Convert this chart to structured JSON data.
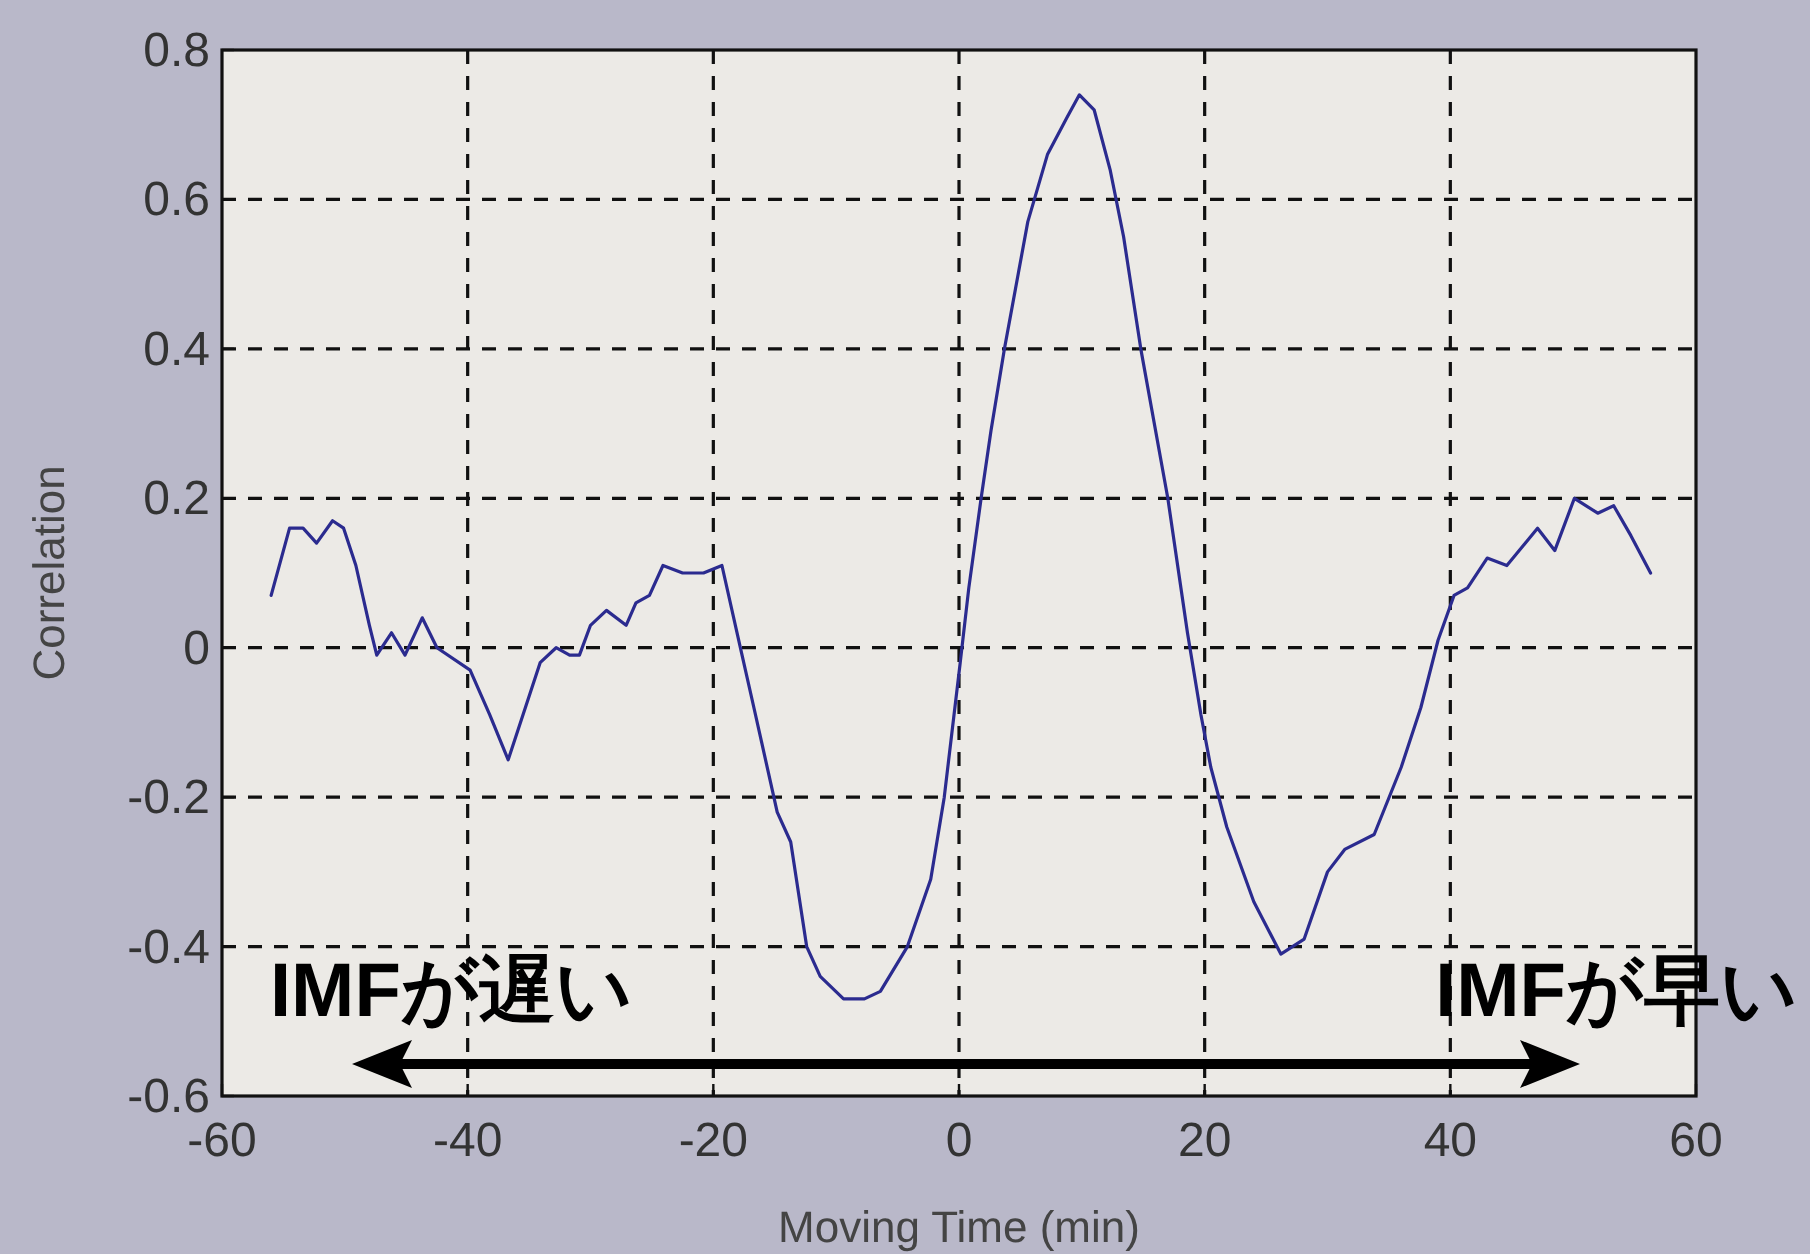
{
  "chart_data": {
    "type": "line",
    "xlabel": "Moving Time (min)",
    "ylabel": "Correlation",
    "xlim": [
      -60,
      60
    ],
    "ylim": [
      -0.6,
      0.8
    ],
    "xticks": [
      -60,
      -40,
      -20,
      0,
      20,
      40,
      60
    ],
    "yticks": [
      -0.6,
      -0.4,
      -0.2,
      0,
      0.2,
      0.4,
      0.6,
      0.8
    ],
    "grid": true,
    "annotations": [
      "IMFが遅い",
      "IMFが早い"
    ],
    "series": [
      {
        "color": "#2b2b8f",
        "x": [
          -56.0,
          -54.5,
          -53.4,
          -52.3,
          -51.0,
          -50.1,
          -49.1,
          -48.0,
          -47.4,
          -46.2,
          -45.1,
          -43.7,
          -42.5,
          -39.8,
          -38.2,
          -36.7,
          -35.5,
          -34.1,
          -32.8,
          -31.7,
          -30.9,
          -30.0,
          -28.7,
          -27.1,
          -26.3,
          -25.2,
          -24.1,
          -22.5,
          -20.8,
          -19.3,
          -17.8,
          -16.7,
          -14.8,
          -13.7,
          -12.4,
          -11.3,
          -9.4,
          -7.7,
          -6.4,
          -4.2,
          -2.3,
          -1.2,
          0.1,
          0.8,
          1.8,
          2.6,
          3.7,
          5.6,
          7.2,
          8.8,
          9.8,
          11.0,
          12.3,
          13.4,
          14.8,
          17.0,
          18.6,
          19.7,
          20.5,
          21.8,
          24.0,
          26.2,
          28.1,
          30.0,
          31.4,
          33.8,
          36.0,
          37.6,
          39.0,
          40.3,
          41.4,
          43.0,
          44.6,
          47.1,
          48.5,
          50.1,
          52.0,
          53.3,
          54.7,
          56.3
        ],
        "values": [
          0.07,
          0.16,
          0.16,
          0.14,
          0.17,
          0.16,
          0.11,
          0.03,
          -0.01,
          0.02,
          -0.01,
          0.04,
          0.0,
          -0.03,
          -0.09,
          -0.15,
          -0.09,
          -0.02,
          0.0,
          -0.01,
          -0.01,
          0.03,
          0.05,
          0.03,
          0.06,
          0.07,
          0.11,
          0.1,
          0.1,
          0.11,
          0.0,
          -0.08,
          -0.22,
          -0.26,
          -0.4,
          -0.44,
          -0.47,
          -0.47,
          -0.46,
          -0.4,
          -0.31,
          -0.2,
          -0.02,
          0.08,
          0.2,
          0.29,
          0.4,
          0.57,
          0.66,
          0.71,
          0.74,
          0.72,
          0.64,
          0.55,
          0.4,
          0.2,
          0.02,
          -0.09,
          -0.16,
          -0.24,
          -0.34,
          -0.41,
          -0.39,
          -0.3,
          -0.27,
          -0.25,
          -0.16,
          -0.08,
          0.01,
          0.07,
          0.08,
          0.12,
          0.11,
          0.16,
          0.13,
          0.2,
          0.18,
          0.19,
          0.15,
          0.1
        ]
      }
    ]
  }
}
